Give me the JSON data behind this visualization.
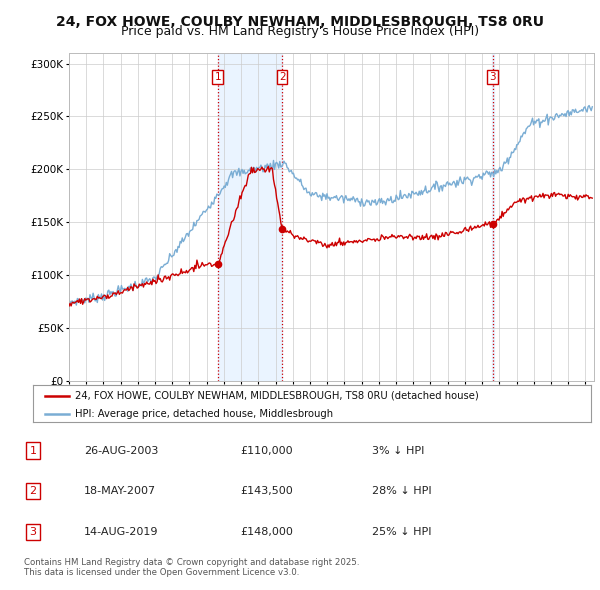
{
  "title": "24, FOX HOWE, COULBY NEWHAM, MIDDLESBROUGH, TS8 0RU",
  "subtitle": "Price paid vs. HM Land Registry's House Price Index (HPI)",
  "title_fontsize": 10,
  "subtitle_fontsize": 9,
  "background_color": "#ffffff",
  "plot_bg_color": "#ffffff",
  "grid_color": "#cccccc",
  "ylim": [
    0,
    310000
  ],
  "xlim_start": 1995.0,
  "xlim_end": 2025.5,
  "yticks": [
    0,
    50000,
    100000,
    150000,
    200000,
    250000,
    300000
  ],
  "ytick_labels": [
    "£0",
    "£50K",
    "£100K",
    "£150K",
    "£200K",
    "£250K",
    "£300K"
  ],
  "xticks": [
    1995,
    1996,
    1997,
    1998,
    1999,
    2000,
    2001,
    2002,
    2003,
    2004,
    2005,
    2006,
    2007,
    2008,
    2009,
    2010,
    2011,
    2012,
    2013,
    2014,
    2015,
    2016,
    2017,
    2018,
    2019,
    2020,
    2021,
    2022,
    2023,
    2024,
    2025
  ],
  "hpi_line_color": "#7aadd4",
  "price_line_color": "#cc0000",
  "sale_marker_color": "#cc0000",
  "vline_color": "#cc0000",
  "vline_shade_color": "#ddeeff",
  "sales": [
    {
      "num": 1,
      "year": 2003.65,
      "price": 110000
    },
    {
      "num": 2,
      "year": 2007.38,
      "price": 143500
    },
    {
      "num": 3,
      "year": 2019.62,
      "price": 148000
    }
  ],
  "legend_entries": [
    "24, FOX HOWE, COULBY NEWHAM, MIDDLESBROUGH, TS8 0RU (detached house)",
    "HPI: Average price, detached house, Middlesbrough"
  ],
  "footnote": "Contains HM Land Registry data © Crown copyright and database right 2025.\nThis data is licensed under the Open Government Licence v3.0.",
  "table_entries": [
    {
      "num": 1,
      "date": "26-AUG-2003",
      "price": "£110,000",
      "pct": "3% ↓ HPI"
    },
    {
      "num": 2,
      "date": "18-MAY-2007",
      "price": "£143,500",
      "pct": "28% ↓ HPI"
    },
    {
      "num": 3,
      "date": "14-AUG-2019",
      "price": "£148,000",
      "pct": "25% ↓ HPI"
    }
  ]
}
